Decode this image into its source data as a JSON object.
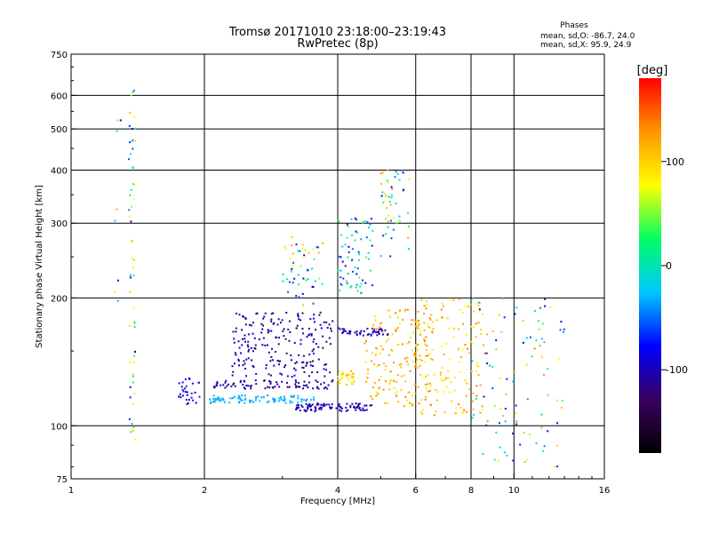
{
  "header": {
    "title_line1": "Tromsø 20171010 23:18:00–23:19:43",
    "title_line2": "RwPretec (8p)",
    "phases_title": "Phases",
    "phases_o": "mean, sd,O: -86.7, 24.0",
    "phases_x": "mean, sd,X:  95.9, 24.9"
  },
  "colorbar": {
    "label": "[deg]",
    "ticks": [
      {
        "label": "100",
        "value": 100
      },
      {
        "label": "0",
        "value": 0
      },
      {
        "label": "-100",
        "value": -100
      }
    ],
    "range": [
      -180,
      180
    ],
    "colors": [
      "#000000",
      "#3a0060",
      "#0000ff",
      "#00c8ff",
      "#00ff64",
      "#ffff00",
      "#ff9600",
      "#ff0000"
    ]
  },
  "chart_data": {
    "type": "scatter",
    "title": "Tromsø 20171010 23:18:00–23:19:43",
    "subtitle": "RwPretec (8p)",
    "xlabel": "Frequency [MHz]",
    "ylabel": "Stationary phase Virtual Height [km]",
    "xscale": "log",
    "yscale": "log",
    "xlim": [
      1,
      16
    ],
    "ylim": [
      75,
      750
    ],
    "xticks": [
      1,
      2,
      4,
      6,
      8,
      10,
      16
    ],
    "yticks": [
      75,
      100,
      200,
      300,
      400,
      500,
      600,
      750
    ],
    "grid_x": [
      2,
      4,
      6,
      8,
      10
    ],
    "grid_y": [
      100,
      200,
      300,
      400,
      500,
      600
    ],
    "color_variable": "phase [deg]",
    "clusters": [
      {
        "f_range": [
          1.35,
          1.4
        ],
        "h_range": [
          90,
          620
        ],
        "phase_range": [
          -110,
          110
        ],
        "count": 60
      },
      {
        "f_range": [
          1.25,
          1.3
        ],
        "h_range": [
          180,
          590
        ],
        "phase_range": [
          -100,
          120
        ],
        "count": 8
      },
      {
        "f_range": [
          1.75,
          1.95
        ],
        "h_range": [
          112,
          130
        ],
        "phase_range": [
          -95,
          -60
        ],
        "count": 30
      },
      {
        "f_range": [
          2.05,
          3.6
        ],
        "h_range": [
          113,
          118
        ],
        "phase_range": [
          -40,
          -20
        ],
        "count": 90
      },
      {
        "f_range": [
          2.1,
          3.9
        ],
        "h_range": [
          122,
          128
        ],
        "phase_range": [
          -120,
          -95
        ],
        "count": 80
      },
      {
        "f_range": [
          2.3,
          3.9
        ],
        "h_range": [
          130,
          185
        ],
        "phase_range": [
          -130,
          -85
        ],
        "count": 200
      },
      {
        "f_range": [
          3.0,
          3.7
        ],
        "h_range": [
          185,
          280
        ],
        "phase_range": [
          -110,
          120
        ],
        "count": 50
      },
      {
        "f_range": [
          3.2,
          4.8
        ],
        "h_range": [
          108,
          113
        ],
        "phase_range": [
          -110,
          -90
        ],
        "count": 90
      },
      {
        "f_range": [
          4.0,
          5.2
        ],
        "h_range": [
          163,
          170
        ],
        "phase_range": [
          -110,
          -90
        ],
        "count": 50
      },
      {
        "f_range": [
          4.0,
          4.8
        ],
        "h_range": [
          205,
          310
        ],
        "phase_range": [
          -100,
          40
        ],
        "count": 70
      },
      {
        "f_range": [
          4.0,
          4.4
        ],
        "h_range": [
          125,
          135
        ],
        "phase_range": [
          60,
          120
        ],
        "count": 30
      },
      {
        "f_range": [
          4.6,
          6.5
        ],
        "h_range": [
          110,
          190
        ],
        "phase_range": [
          80,
          140
        ],
        "count": 160
      },
      {
        "f_range": [
          5.0,
          5.8
        ],
        "h_range": [
          250,
          400
        ],
        "phase_range": [
          -90,
          140
        ],
        "count": 50
      },
      {
        "f_range": [
          6.0,
          8.5
        ],
        "h_range": [
          105,
          200
        ],
        "phase_range": [
          70,
          140
        ],
        "count": 140
      },
      {
        "f_range": [
          8.0,
          13.0
        ],
        "h_range": [
          80,
          200
        ],
        "phase_range": [
          -110,
          140
        ],
        "count": 100
      }
    ]
  }
}
